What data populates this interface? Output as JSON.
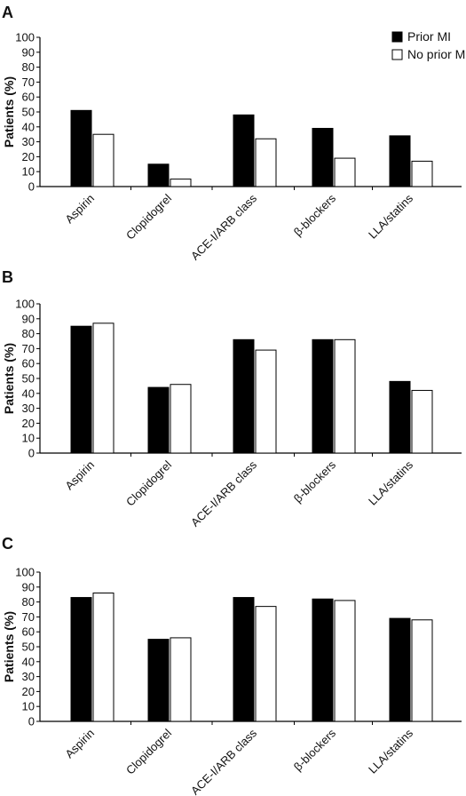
{
  "legend": {
    "prior": "Prior MI",
    "no_prior": "No prior MI"
  },
  "colors": {
    "prior": "#000000",
    "no_prior": "#ffffff",
    "stroke": "#000000"
  },
  "chart_data": [
    {
      "panel": "A",
      "type": "bar",
      "ylabel": "Patients (%)",
      "ylim": [
        0,
        100
      ],
      "yticks": [
        0,
        10,
        20,
        30,
        40,
        50,
        60,
        70,
        80,
        90,
        100
      ],
      "categories": [
        "Aspirin",
        "Clopidogrel",
        "ACE-I/ARB class",
        "β-blockers",
        "LLA/statins"
      ],
      "series": [
        {
          "name": "Prior MI",
          "values": [
            51,
            15,
            48,
            39,
            34
          ]
        },
        {
          "name": "No prior MI",
          "values": [
            35,
            5,
            32,
            19,
            17
          ]
        }
      ],
      "legend_position": "top-right"
    },
    {
      "panel": "B",
      "type": "bar",
      "ylabel": "Patients (%)",
      "ylim": [
        0,
        100
      ],
      "yticks": [
        0,
        10,
        20,
        30,
        40,
        50,
        60,
        70,
        80,
        90,
        100
      ],
      "categories": [
        "Aspirin",
        "Clopidogrel",
        "ACE-I/ARB class",
        "β-blockers",
        "LLA/statins"
      ],
      "series": [
        {
          "name": "Prior MI",
          "values": [
            85,
            44,
            76,
            76,
            48
          ]
        },
        {
          "name": "No prior MI",
          "values": [
            87,
            46,
            69,
            76,
            42
          ]
        }
      ]
    },
    {
      "panel": "C",
      "type": "bar",
      "ylabel": "Patients (%)",
      "ylim": [
        0,
        100
      ],
      "yticks": [
        0,
        10,
        20,
        30,
        40,
        50,
        60,
        70,
        80,
        90,
        100
      ],
      "categories": [
        "Aspirin",
        "Clopidogrel",
        "ACE-I/ARB class",
        "β-blockers",
        "LLA/statins"
      ],
      "series": [
        {
          "name": "Prior MI",
          "values": [
            83,
            55,
            83,
            82,
            69
          ]
        },
        {
          "name": "No prior MI",
          "values": [
            86,
            56,
            77,
            81,
            68
          ]
        }
      ]
    }
  ]
}
